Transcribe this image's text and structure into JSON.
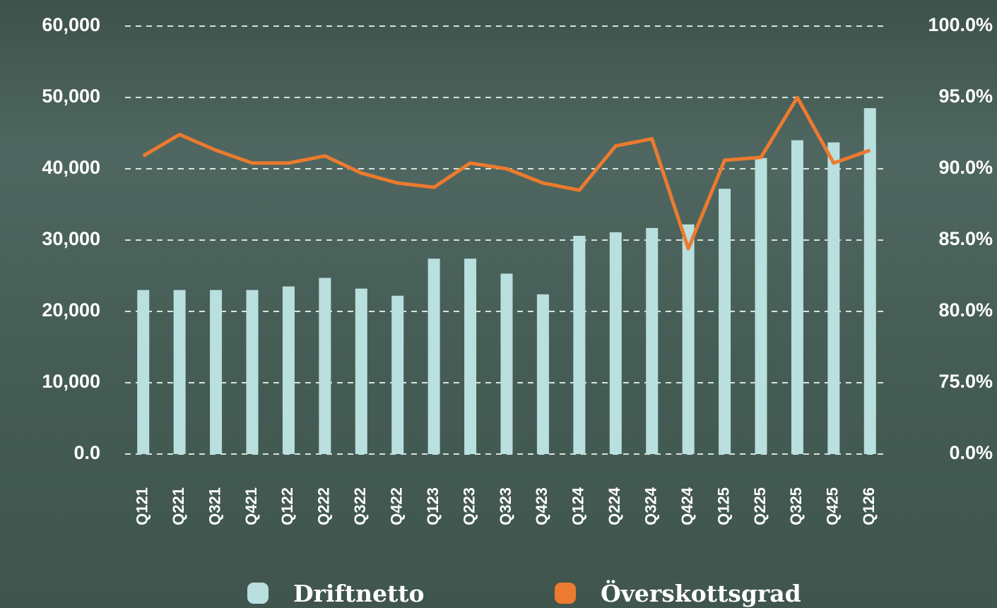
{
  "chart_data": {
    "type": "bar_line",
    "categories": [
      "Q121",
      "Q221",
      "Q321",
      "Q421",
      "Q122",
      "Q222",
      "Q322",
      "Q422",
      "Q123",
      "Q223",
      "Q323",
      "Q423",
      "Q124",
      "Q224",
      "Q324",
      "Q424",
      "Q125",
      "Q225",
      "Q325",
      "Q425",
      "Q126"
    ],
    "series": [
      {
        "name": "Driftnetto",
        "type": "bar",
        "color": "#b9dfdf",
        "values": [
          23000,
          23000,
          23000,
          23000,
          23500,
          24700,
          23200,
          22200,
          27400,
          27400,
          25300,
          22400,
          30600,
          31100,
          31700,
          32200,
          37200,
          41500,
          44000,
          43700,
          48500
        ]
      },
      {
        "name": "Överskottsgrad",
        "type": "line",
        "axis": "y2",
        "color": "#ec7a2f",
        "values": [
          90.9,
          92.4,
          91.3,
          90.4,
          90.4,
          90.9,
          89.7,
          89.0,
          88.7,
          90.4,
          90.0,
          89.0,
          88.5,
          91.6,
          92.1,
          84.4,
          90.6,
          90.8,
          95.0,
          90.4,
          91.3
        ]
      }
    ],
    "ylim": [
      0,
      60000
    ],
    "yticks": [
      {
        "value": 0,
        "label": "0.0"
      },
      {
        "value": 10000,
        "label": "10,000"
      },
      {
        "value": 20000,
        "label": "20,000"
      },
      {
        "value": 30000,
        "label": "30,000"
      },
      {
        "value": 40000,
        "label": "40,000"
      },
      {
        "value": 50000,
        "label": "50,000"
      },
      {
        "value": 60000,
        "label": "60,000"
      }
    ],
    "y2lim": [
      0,
      100
    ],
    "y2break": [
      0,
      75
    ],
    "y2ticks": [
      {
        "value": 0,
        "label": "0.0%"
      },
      {
        "value": 75,
        "label": "75.0%"
      },
      {
        "value": 80,
        "label": "80.0%"
      },
      {
        "value": 85,
        "label": "85.0%"
      },
      {
        "value": 90,
        "label": "90.0%"
      },
      {
        "value": 95,
        "label": "95.0%"
      },
      {
        "value": 100,
        "label": "100.0%"
      }
    ],
    "grid": true
  }
}
